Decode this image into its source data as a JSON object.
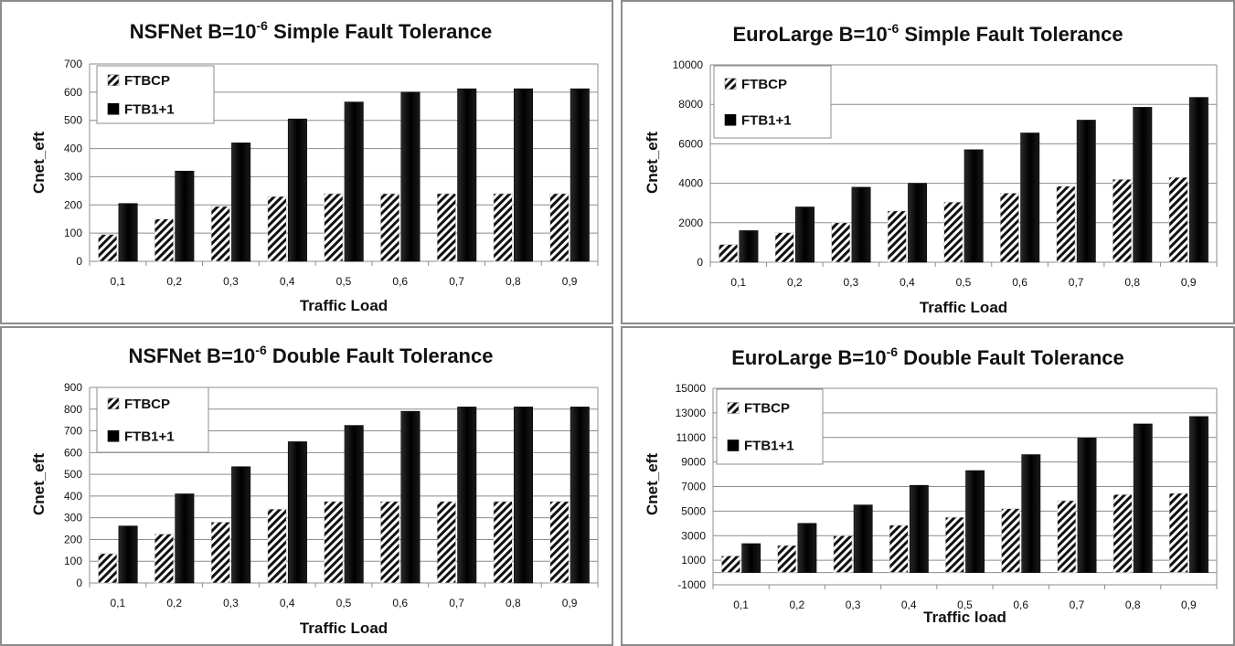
{
  "chart_data": [
    {
      "type": "bar",
      "title_main": "NSFNet B=10",
      "title_sup": "-6",
      "title_rest": " Simple Fault Tolerance",
      "xlabel": "Traffic Load",
      "ylabel": "Cnet_eft",
      "categories": [
        "0,1",
        "0,2",
        "0,3",
        "0,4",
        "0,5",
        "0,6",
        "0,7",
        "0,8",
        "0,9"
      ],
      "ylim": [
        0,
        700
      ],
      "yticks": [
        0,
        100,
        200,
        300,
        400,
        500,
        600,
        700
      ],
      "series": [
        {
          "name": "FTBCP",
          "values": [
            95,
            150,
            195,
            230,
            240,
            240,
            240,
            240,
            240
          ]
        },
        {
          "name": "FTB1+1",
          "values": [
            205,
            320,
            420,
            505,
            565,
            600,
            612,
            612,
            612
          ]
        }
      ],
      "legend": "top-left",
      "grid": true
    },
    {
      "type": "bar",
      "title_main": "EuroLarge B=10",
      "title_sup": "-6",
      "title_rest": " Simple Fault Tolerance",
      "xlabel": "Traffic Load",
      "ylabel": "Cnet_eft",
      "categories": [
        "0,1",
        "0,2",
        "0,3",
        "0,4",
        "0,5",
        "0,6",
        "0,7",
        "0,8",
        "0,9"
      ],
      "ylim": [
        0,
        10000
      ],
      "yticks": [
        0,
        2000,
        4000,
        6000,
        8000,
        10000
      ],
      "series": [
        {
          "name": "FTBCP",
          "values": [
            900,
            1500,
            2000,
            2600,
            3050,
            3500,
            3850,
            4200,
            4300
          ]
        },
        {
          "name": "FTB1+1",
          "values": [
            1600,
            2800,
            3800,
            4000,
            5700,
            6550,
            7200,
            7850,
            8350
          ]
        }
      ],
      "legend": "top-left",
      "grid": true
    },
    {
      "type": "bar",
      "title_main": "NSFNet B=10",
      "title_sup": "-6",
      "title_rest": " Double Fault Tolerance",
      "xlabel": "Traffic Load",
      "ylabel": "Cnet_eft",
      "categories": [
        "0,1",
        "0,2",
        "0,3",
        "0,4",
        "0,5",
        "0,6",
        "0,7",
        "0,8",
        "0,9"
      ],
      "ylim": [
        0,
        900
      ],
      "yticks": [
        0,
        100,
        200,
        300,
        400,
        500,
        600,
        700,
        800,
        900
      ],
      "series": [
        {
          "name": "FTBCP",
          "values": [
            135,
            225,
            280,
            340,
            375,
            375,
            375,
            375,
            375
          ]
        },
        {
          "name": "FTB1+1",
          "values": [
            262,
            410,
            535,
            650,
            725,
            790,
            810,
            810,
            810
          ]
        }
      ],
      "legend": "top-left",
      "grid": true
    },
    {
      "type": "bar",
      "title_main": "EuroLarge B=10",
      "title_sup": "-6",
      "title_rest": " Double Fault Tolerance",
      "xlabel": "Traffic load",
      "ylabel": "Cnet_eft",
      "categories": [
        "0,1",
        "0,2",
        "0,3",
        "0,4",
        "0,5",
        "0,6",
        "0,7",
        "0,8",
        "0,9"
      ],
      "ylim": [
        -1000,
        15000
      ],
      "yticks": [
        -1000,
        1000,
        3000,
        5000,
        7000,
        9000,
        11000,
        13000,
        15000
      ],
      "series": [
        {
          "name": "FTBCP",
          "values": [
            1350,
            2200,
            3000,
            3850,
            4500,
            5200,
            5850,
            6350,
            6450
          ]
        },
        {
          "name": "FTB1+1",
          "values": [
            2350,
            4000,
            5500,
            7100,
            8300,
            9600,
            10950,
            12100,
            12700
          ]
        }
      ],
      "legend": "top-left",
      "grid": true
    }
  ]
}
